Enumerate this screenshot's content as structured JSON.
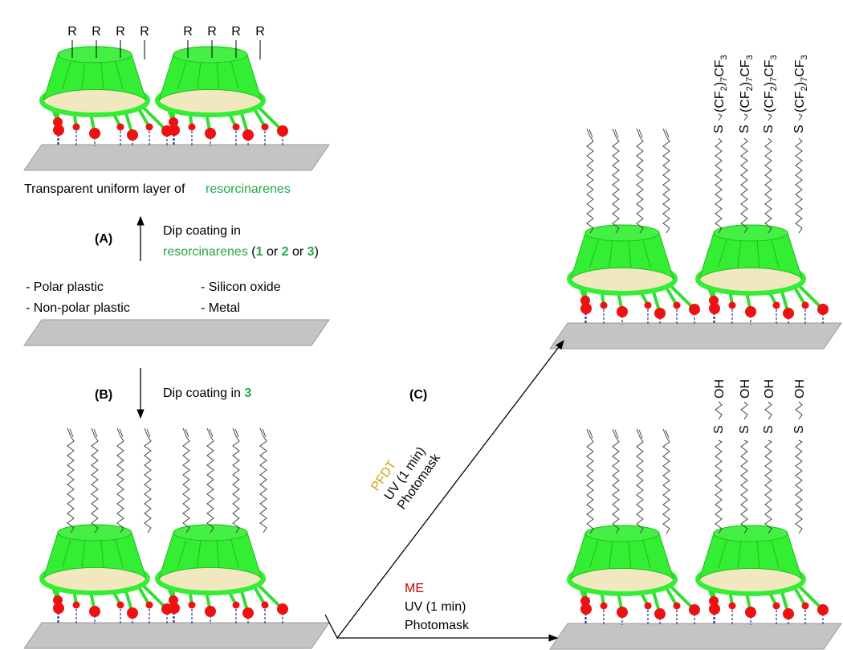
{
  "panel_top": {
    "r_labels": [
      "R",
      "R",
      "R",
      "R",
      "R",
      "R",
      "R",
      "R"
    ],
    "caption": {
      "text": "Transparent uniform layer of ",
      "highlight": "resorcinarenes"
    }
  },
  "step_A": {
    "label": "(A)",
    "line1": "Dip coating in",
    "line2": [
      "resorcinarenes",
      " (",
      "1",
      " or ",
      "2",
      " or ",
      "3",
      ")"
    ]
  },
  "substrates": [
    "- Polar plastic",
    "- Non-polar plastic",
    "- Silicon oxide",
    "- Metal"
  ],
  "step_B": {
    "label": "(B)",
    "text": "Dip coating in ",
    "compound": "3"
  },
  "step_C": {
    "label": "(C)",
    "upper": [
      "PFDT",
      "UV (1 min)",
      "Photomask"
    ],
    "lower": [
      "ME",
      "UV (1 min)",
      "Photomask"
    ]
  },
  "fluoro_chains": [
    {
      "linker": "S",
      "tail": [
        "(CF",
        "2",
        ")",
        "7",
        "CF",
        "3"
      ]
    },
    {
      "linker": "S",
      "tail": [
        "(CF",
        "2",
        ")",
        "7",
        "CF",
        "3"
      ]
    },
    {
      "linker": "S",
      "tail": [
        "(CF",
        "2",
        ")",
        "7",
        "CF",
        "3"
      ]
    },
    {
      "linker": "S",
      "tail": [
        "(CF",
        "2",
        ")",
        "7",
        "CF",
        "3"
      ]
    }
  ],
  "hydroxy_chains": [
    {
      "linker": "S",
      "tail": "OH"
    },
    {
      "linker": "S",
      "tail": "OH"
    },
    {
      "linker": "S",
      "tail": "OH"
    },
    {
      "linker": "S",
      "tail": "OH"
    }
  ]
}
